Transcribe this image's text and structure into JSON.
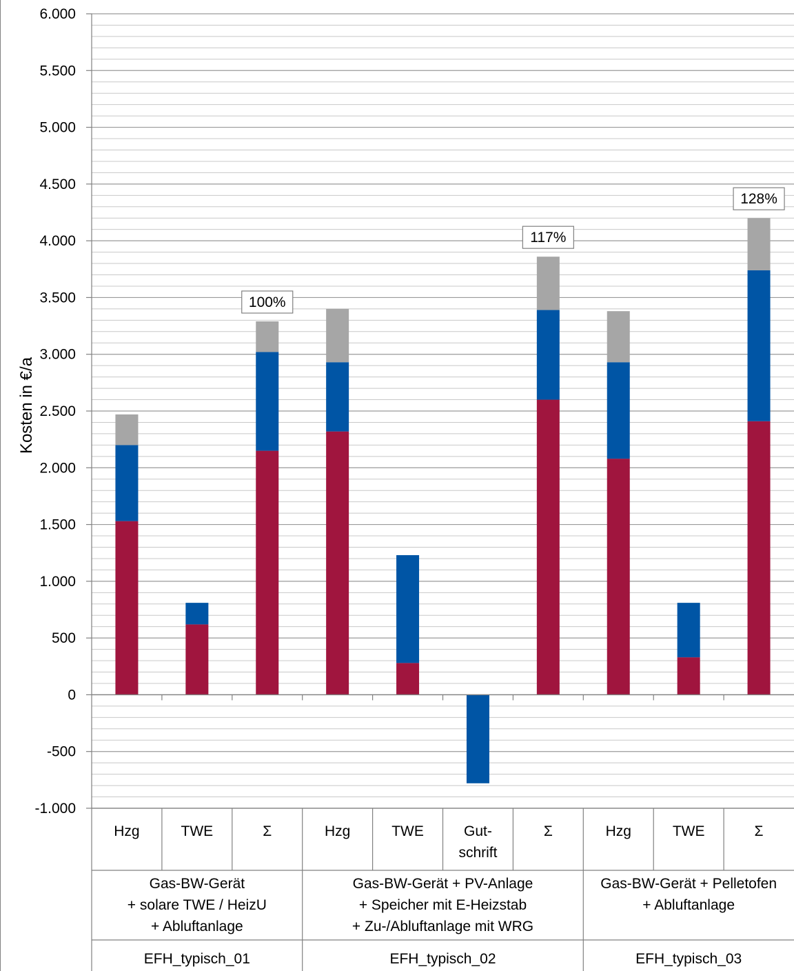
{
  "chart_data": {
    "type": "bar",
    "stacked": true,
    "ylabel": "Kosten in €/a",
    "ylim": [
      -1000,
      6000
    ],
    "yticks": [
      {
        "value": 6000,
        "label": "6.000"
      },
      {
        "value": 5500,
        "label": "5.500"
      },
      {
        "value": 5000,
        "label": "5.000"
      },
      {
        "value": 4500,
        "label": "4.500"
      },
      {
        "value": 4000,
        "label": "4.000"
      },
      {
        "value": 3500,
        "label": "3.500"
      },
      {
        "value": 3000,
        "label": "3.000"
      },
      {
        "value": 2500,
        "label": "2.500"
      },
      {
        "value": 2000,
        "label": "2.000"
      },
      {
        "value": 1500,
        "label": "1.500"
      },
      {
        "value": 1000,
        "label": "1.000"
      },
      {
        "value": 500,
        "label": "500"
      },
      {
        "value": 0,
        "label": "0"
      },
      {
        "value": -500,
        "label": "-500"
      },
      {
        "value": -1000,
        "label": "-1.000"
      }
    ],
    "grid": true,
    "series_colors": [
      "#a0153e",
      "#0055a5",
      "#a6a6a6"
    ],
    "categories": [
      {
        "label": [
          "Hzg"
        ],
        "values": [
          1530,
          670,
          270
        ],
        "group": 0
      },
      {
        "label": [
          "TWE"
        ],
        "values": [
          620,
          190,
          0
        ],
        "group": 0
      },
      {
        "label": [
          "Σ"
        ],
        "values": [
          2150,
          870,
          270
        ],
        "group": 0,
        "annotation": "100%"
      },
      {
        "label": [
          "Hzg"
        ],
        "values": [
          2320,
          610,
          470
        ],
        "group": 1
      },
      {
        "label": [
          "TWE"
        ],
        "values": [
          280,
          950,
          0
        ],
        "group": 1
      },
      {
        "label": [
          "Gut-",
          "schrift"
        ],
        "values": [
          0,
          -780,
          0
        ],
        "group": 1
      },
      {
        "label": [
          "Σ"
        ],
        "values": [
          2600,
          790,
          470
        ],
        "group": 1,
        "annotation": "117%"
      },
      {
        "label": [
          "Hzg"
        ],
        "values": [
          2080,
          850,
          450
        ],
        "group": 2
      },
      {
        "label": [
          "TWE"
        ],
        "values": [
          330,
          480,
          0
        ],
        "group": 2
      },
      {
        "label": [
          "Σ"
        ],
        "values": [
          2410,
          1330,
          460
        ],
        "group": 2,
        "annotation": "128%"
      }
    ],
    "groups": [
      {
        "description": [
          "Gas-BW-Gerät",
          "+ solare TWE / HeizU",
          "+ Abluftanlage"
        ],
        "name": "EFH_typisch_01"
      },
      {
        "description": [
          "Gas-BW-Gerät + PV-Anlage",
          "+ Speicher mit E-Heizstab",
          "+ Zu-/Abluftanlage mit WRG"
        ],
        "name": "EFH_typisch_02"
      },
      {
        "description": [
          "Gas-BW-Gerät + Pelletofen",
          "+ Abluftanlage"
        ],
        "name": "EFH_typisch_03"
      }
    ]
  }
}
